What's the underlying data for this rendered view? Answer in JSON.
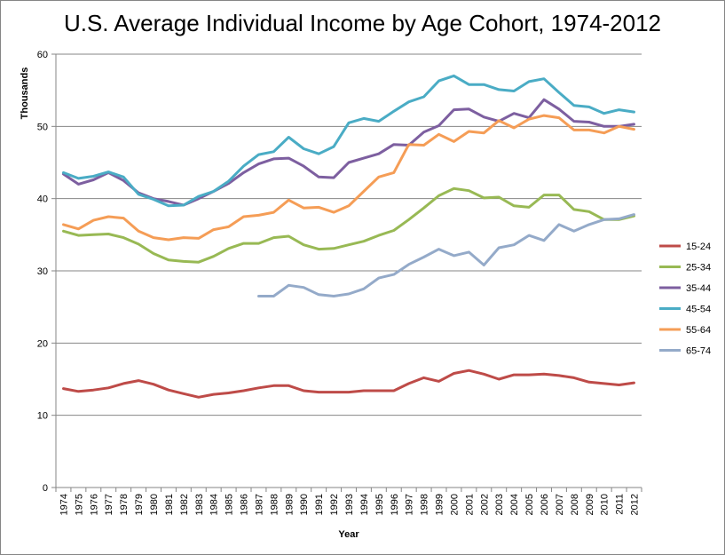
{
  "chart_data": {
    "type": "line",
    "title": "U.S. Average Individual Income by Age Cohort, 1974-2012",
    "xlabel": "Year",
    "ylabel": "Thousands",
    "ylim": [
      0,
      60
    ],
    "yticks": [
      0,
      10,
      20,
      30,
      40,
      50,
      60
    ],
    "grid": "horizontal",
    "legend_position": "right",
    "x": [
      1974,
      1975,
      1976,
      1977,
      1978,
      1979,
      1980,
      1981,
      1982,
      1983,
      1984,
      1985,
      1986,
      1987,
      1988,
      1989,
      1990,
      1991,
      1992,
      1993,
      1994,
      1995,
      1996,
      1997,
      1998,
      1999,
      2000,
      2001,
      2002,
      2003,
      2004,
      2005,
      2006,
      2007,
      2008,
      2009,
      2010,
      2011,
      2012
    ],
    "series": [
      {
        "name": "15-24",
        "color": "#be4b48",
        "values": [
          13.7,
          13.3,
          13.5,
          13.8,
          14.4,
          14.8,
          14.3,
          13.5,
          13.0,
          12.5,
          12.9,
          13.1,
          13.4,
          13.8,
          14.1,
          14.1,
          13.4,
          13.2,
          13.2,
          13.2,
          13.4,
          13.4,
          13.4,
          14.4,
          15.2,
          14.7,
          15.8,
          16.2,
          15.7,
          15.0,
          15.6,
          15.6,
          15.7,
          15.5,
          15.2,
          14.6,
          14.4,
          14.2,
          14.5
        ]
      },
      {
        "name": "25-34",
        "color": "#98b954",
        "values": [
          35.5,
          34.9,
          35.0,
          35.1,
          34.6,
          33.7,
          32.4,
          31.5,
          31.3,
          31.2,
          32.0,
          33.1,
          33.8,
          33.8,
          34.6,
          34.8,
          33.6,
          33.0,
          33.1,
          33.6,
          34.1,
          34.9,
          35.6,
          37.1,
          38.7,
          40.4,
          41.4,
          41.1,
          40.1,
          40.2,
          39.0,
          38.8,
          40.5,
          40.5,
          38.5,
          38.2,
          37.1,
          37.1,
          37.6
        ]
      },
      {
        "name": "35-44",
        "color": "#7d5fa0",
        "values": [
          43.4,
          42.0,
          42.6,
          43.6,
          42.5,
          40.8,
          40.0,
          39.6,
          39.1,
          40.0,
          41.0,
          42.1,
          43.6,
          44.8,
          45.5,
          45.6,
          44.5,
          43.0,
          42.9,
          45.0,
          45.6,
          46.2,
          47.5,
          47.4,
          49.2,
          50.1,
          52.3,
          52.4,
          51.3,
          50.7,
          51.8,
          51.2,
          53.7,
          52.4,
          50.7,
          50.6,
          50.0,
          50.0,
          50.3
        ]
      },
      {
        "name": "45-54",
        "color": "#4aacc5",
        "values": [
          43.6,
          42.8,
          43.1,
          43.7,
          43.0,
          40.6,
          39.9,
          39.0,
          39.1,
          40.3,
          41.0,
          42.4,
          44.5,
          46.1,
          46.5,
          48.5,
          46.9,
          46.2,
          47.2,
          50.5,
          51.1,
          50.7,
          52.1,
          53.4,
          54.1,
          56.3,
          57.0,
          55.8,
          55.8,
          55.1,
          54.9,
          56.2,
          56.6,
          54.7,
          52.9,
          52.7,
          51.8,
          52.3,
          52.0
        ]
      },
      {
        "name": "55-64",
        "color": "#f59d56",
        "values": [
          36.4,
          35.8,
          37.0,
          37.5,
          37.3,
          35.5,
          34.6,
          34.3,
          34.6,
          34.5,
          35.7,
          36.1,
          37.5,
          37.7,
          38.1,
          39.8,
          38.7,
          38.8,
          38.1,
          39.0,
          41.0,
          43.0,
          43.6,
          47.5,
          47.4,
          48.9,
          47.9,
          49.3,
          49.1,
          50.8,
          49.8,
          51.0,
          51.5,
          51.2,
          49.5,
          49.5,
          49.1,
          50.0,
          49.6
        ]
      },
      {
        "name": "65-74",
        "color": "#94aac9",
        "values": [
          null,
          null,
          null,
          null,
          null,
          null,
          null,
          null,
          null,
          null,
          null,
          null,
          null,
          26.5,
          26.5,
          28.0,
          27.7,
          26.7,
          26.5,
          26.8,
          27.5,
          29.0,
          29.5,
          30.9,
          31.9,
          33.0,
          32.1,
          32.6,
          30.8,
          33.2,
          33.6,
          34.9,
          34.2,
          36.4,
          35.5,
          36.4,
          37.1,
          37.2,
          37.8
        ]
      }
    ]
  }
}
